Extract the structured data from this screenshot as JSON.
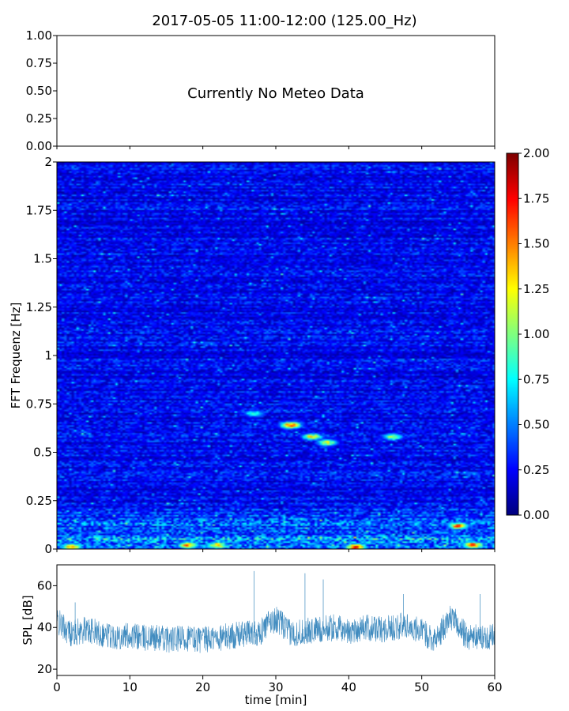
{
  "figure": {
    "title": "2017-05-05 11:00-12:00 (125.00_Hz)"
  },
  "chart_data": [
    {
      "type": "line",
      "panel": "meteo",
      "message": "Currently No Meteo Data",
      "ylim": [
        0,
        1
      ],
      "yticks": [
        "0.00",
        "0.25",
        "0.50",
        "0.75",
        "1.00"
      ],
      "xlim": [
        0,
        60
      ]
    },
    {
      "type": "heatmap",
      "panel": "spectrogram",
      "ylabel": "FFT Frequenz [Hz]",
      "ylim": [
        0,
        2
      ],
      "yticks": [
        "0",
        "0.25",
        "0.5",
        "0.75",
        "1",
        "1.25",
        "1.5",
        "1.75",
        "2"
      ],
      "xlim": [
        0,
        60
      ],
      "colormap": "jet",
      "colorbar": {
        "min": 0,
        "max": 2,
        "ticks": [
          "0.00",
          "0.25",
          "0.50",
          "0.75",
          "1.00",
          "1.25",
          "1.50",
          "1.75",
          "2.00"
        ]
      },
      "typical_value": 0.22,
      "low_frequency_band": {
        "freq_max": 0.25,
        "typical_value": 0.55
      },
      "hotspots": [
        {
          "time": 2,
          "freq": 0.01,
          "value": 1.6
        },
        {
          "time": 18,
          "freq": 0.02,
          "value": 1.6
        },
        {
          "time": 22,
          "freq": 0.02,
          "value": 1.5
        },
        {
          "time": 27,
          "freq": 0.7,
          "value": 0.95
        },
        {
          "time": 32,
          "freq": 0.64,
          "value": 1.8
        },
        {
          "time": 35,
          "freq": 0.58,
          "value": 1.4
        },
        {
          "time": 37,
          "freq": 0.55,
          "value": 1.3
        },
        {
          "time": 41,
          "freq": 0.01,
          "value": 1.9
        },
        {
          "time": 46,
          "freq": 0.58,
          "value": 1.2
        },
        {
          "time": 55,
          "freq": 0.12,
          "value": 1.7
        },
        {
          "time": 57,
          "freq": 0.02,
          "value": 1.8
        }
      ]
    },
    {
      "type": "line",
      "panel": "spl",
      "ylabel": "SPL [dB]",
      "xlabel": "time [min]",
      "xlim": [
        0,
        60
      ],
      "ylim": [
        17,
        70
      ],
      "yticks": [
        "20",
        "40",
        "60"
      ],
      "xticks": [
        "0",
        "10",
        "20",
        "30",
        "40",
        "50",
        "60"
      ],
      "color": "#1f77b4",
      "series": [
        {
          "x": [
            0,
            2,
            4,
            6,
            8,
            10,
            12,
            14,
            16,
            18,
            20,
            22,
            24,
            26,
            28,
            29,
            30,
            31,
            32,
            34,
            36,
            38,
            40,
            42,
            44,
            46,
            48,
            50,
            52,
            53,
            54,
            55,
            56,
            58,
            60
          ],
          "values": [
            43,
            37,
            39,
            37,
            36,
            36,
            35,
            35,
            34,
            35,
            34,
            35,
            36,
            37,
            38,
            42,
            44,
            41,
            37,
            38,
            39,
            40,
            38,
            40,
            39,
            40,
            41,
            38,
            34,
            40,
            45,
            41,
            36,
            35,
            36
          ]
        }
      ],
      "spikes": [
        {
          "x": 2.5,
          "value": 52
        },
        {
          "x": 27,
          "value": 67
        },
        {
          "x": 34,
          "value": 66
        },
        {
          "x": 36.5,
          "value": 63
        },
        {
          "x": 47.5,
          "value": 56
        },
        {
          "x": 58,
          "value": 56
        }
      ]
    }
  ]
}
